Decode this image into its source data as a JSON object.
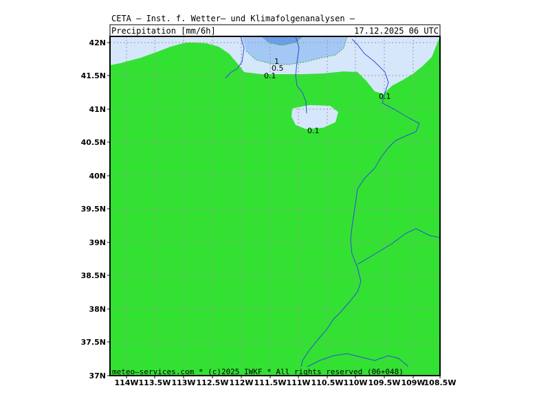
{
  "header": {
    "title": "CETA — Inst. f. Wetter— und Klimafolgenanalysen —",
    "variable": "Precipitation [mm/6h]",
    "valid_time": "17.12.2025 06 UTC"
  },
  "footer": "meteo—services.com * (c)2025 IWKF * All rights reserved (06+048)",
  "map": {
    "lat_ticks": [
      "42N",
      "41.5N",
      "41N",
      "40.5N",
      "40N",
      "39.5N",
      "39N",
      "38.5N",
      "38N",
      "37.5N",
      "37N"
    ],
    "lon_ticks": [
      "114W",
      "113.5W",
      "113W",
      "112.5W",
      "112W",
      "111.5W",
      "111W",
      "110.5W",
      "110W",
      "109.5W",
      "109W",
      "108.5W"
    ],
    "contour_labels": [
      "1",
      "0.5",
      "0.1",
      "0.1",
      "0.1"
    ],
    "colors": {
      "background_land": "#33e133",
      "precip_0_1": "#d6e6fb",
      "precip_0_5": "#a4c8f5",
      "precip_1": "#6a9ee8",
      "boundaries": "#2a4fd8",
      "grid": "#9a9a9a"
    }
  }
}
